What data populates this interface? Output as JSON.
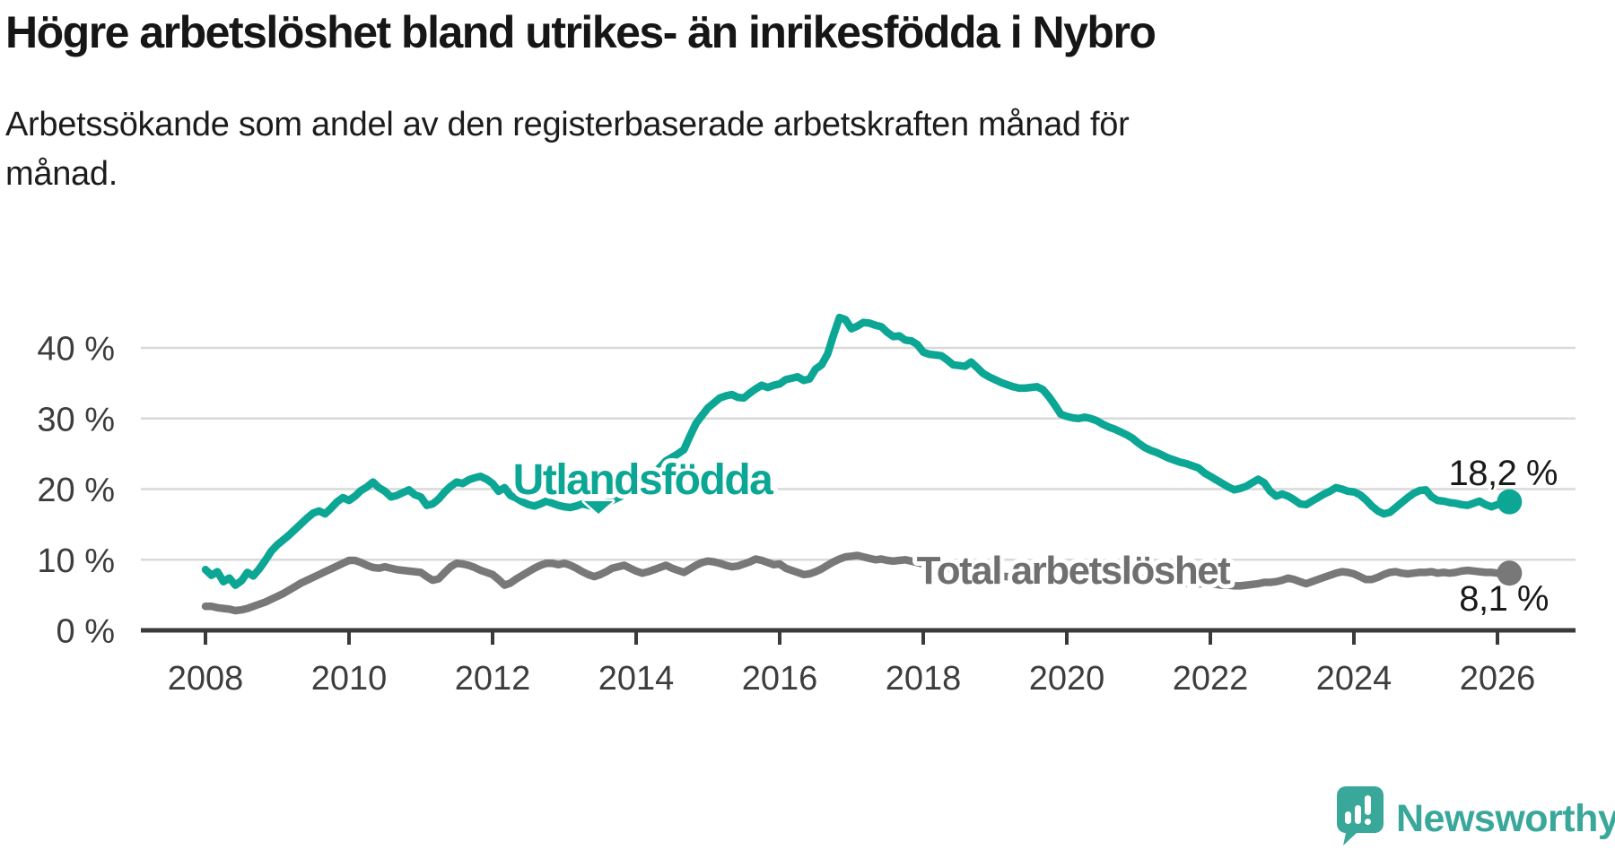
{
  "title": "Högre arbetslöshet bland utrikes- än inrikesfödda i Nybro",
  "subtitle_lines": [
    "Arbetssökande som andel av den registerbaserade arbetskraften månad för",
    "månad."
  ],
  "footer": {
    "brand": "Newsworthy"
  },
  "colors": {
    "teal_line": "#0ca695",
    "gray_line": "#787878",
    "teal_label": "#0ca695",
    "gray_label": "#6f6f6f",
    "grid": "#d9d9d9",
    "axis": "#3a3a3a",
    "tick_text": "#3d3d3d",
    "end_label_text": "#1a1a1a",
    "logo_teal": "#3aa79b"
  },
  "chart_data": {
    "type": "line",
    "title": "Högre arbetslöshet bland utrikes- än inrikesfödda i Nybro",
    "xlabel": "",
    "ylabel": "",
    "frequency": "monthly",
    "x_start": "2008-01",
    "x_end": "2026-03",
    "ylim": [
      0,
      45
    ],
    "grid": "horizontal",
    "legend_position": "inline-labels",
    "yticks": [
      {
        "value": 0,
        "label": "0 %"
      },
      {
        "value": 10,
        "label": "10 %"
      },
      {
        "value": 20,
        "label": "20 %"
      },
      {
        "value": 30,
        "label": "30 %"
      },
      {
        "value": 40,
        "label": "40 %"
      }
    ],
    "xticks": [
      {
        "value": 2008,
        "label": "2008"
      },
      {
        "value": 2010,
        "label": "2010"
      },
      {
        "value": 2012,
        "label": "2012"
      },
      {
        "value": 2014,
        "label": "2014"
      },
      {
        "value": 2016,
        "label": "2016"
      },
      {
        "value": 2018,
        "label": "2018"
      },
      {
        "value": 2020,
        "label": "2020"
      },
      {
        "value": 2022,
        "label": "2022"
      },
      {
        "value": 2024,
        "label": "2024"
      },
      {
        "value": 2026,
        "label": "2026"
      }
    ],
    "series": [
      {
        "name": "Utlandsfödda",
        "color": "#0ca695",
        "end_label": "18,2 %",
        "end_value": 18.2,
        "values": [
          8.6,
          7.8,
          8.3,
          6.9,
          7.4,
          6.4,
          7.0,
          8.2,
          7.7,
          8.7,
          9.9,
          11.2,
          12.1,
          12.8,
          13.5,
          14.3,
          15.1,
          15.9,
          16.6,
          16.9,
          16.5,
          17.3,
          18.2,
          18.8,
          18.4,
          19.0,
          19.8,
          20.3,
          21.0,
          20.2,
          19.7,
          18.9,
          19.1,
          19.5,
          19.9,
          19.2,
          18.9,
          17.7,
          17.9,
          18.6,
          19.6,
          20.4,
          21.0,
          20.8,
          21.3,
          21.6,
          21.8,
          21.4,
          20.8,
          19.7,
          20.2,
          19.1,
          18.7,
          18.2,
          17.8,
          17.6,
          17.9,
          18.3,
          18.0,
          17.7,
          17.5,
          17.4,
          17.6,
          17.9,
          17.7,
          17.5,
          17.8,
          18.1,
          18.4,
          18.8,
          19.2,
          19.6,
          20.1,
          20.7,
          21.4,
          22.2,
          23.1,
          24.0,
          24.5,
          25.0,
          25.6,
          27.5,
          29.3,
          30.4,
          31.5,
          32.2,
          32.9,
          33.2,
          33.4,
          33.0,
          32.9,
          33.6,
          34.2,
          34.7,
          34.4,
          34.7,
          34.9,
          35.5,
          35.7,
          35.9,
          35.4,
          35.6,
          37.0,
          37.6,
          39.1,
          41.8,
          44.3,
          44.0,
          42.7,
          43.1,
          43.6,
          43.5,
          43.2,
          43.0,
          42.2,
          41.6,
          41.7,
          41.1,
          41.0,
          40.5,
          39.4,
          39.1,
          39.0,
          38.9,
          38.3,
          37.6,
          37.5,
          37.4,
          38.0,
          37.2,
          36.4,
          35.9,
          35.5,
          35.1,
          34.8,
          34.5,
          34.3,
          34.3,
          34.4,
          34.5,
          34.1,
          33.1,
          31.9,
          30.6,
          30.3,
          30.1,
          30.0,
          30.2,
          30.0,
          29.7,
          29.2,
          28.8,
          28.5,
          28.1,
          27.7,
          27.2,
          26.5,
          25.9,
          25.5,
          25.2,
          24.8,
          24.4,
          24.1,
          23.8,
          23.6,
          23.3,
          23.0,
          22.3,
          21.8,
          21.3,
          20.8,
          20.3,
          19.9,
          20.1,
          20.4,
          20.9,
          21.4,
          20.9,
          19.7,
          19.0,
          19.3,
          19.0,
          18.5,
          17.9,
          17.8,
          18.3,
          18.8,
          19.3,
          19.7,
          20.2,
          20.0,
          19.7,
          19.6,
          19.2,
          18.5,
          17.6,
          16.9,
          16.5,
          16.7,
          17.4,
          18.1,
          18.8,
          19.4,
          19.8,
          19.9,
          18.9,
          18.4,
          18.3,
          18.1,
          18.0,
          17.8,
          17.7,
          18.0,
          18.3,
          17.8,
          17.5,
          17.8,
          18.0,
          18.2
        ]
      },
      {
        "name": "Total arbetslöshet",
        "color": "#787878",
        "end_label": "8,1 %",
        "end_value": 8.1,
        "values": [
          3.4,
          3.4,
          3.2,
          3.1,
          3.0,
          2.8,
          2.9,
          3.1,
          3.4,
          3.7,
          4.0,
          4.4,
          4.8,
          5.2,
          5.7,
          6.2,
          6.7,
          7.1,
          7.5,
          7.9,
          8.3,
          8.7,
          9.1,
          9.5,
          9.9,
          9.9,
          9.6,
          9.2,
          8.9,
          8.8,
          9.0,
          8.8,
          8.6,
          8.5,
          8.4,
          8.3,
          8.2,
          7.6,
          7.1,
          7.3,
          8.2,
          9.0,
          9.5,
          9.4,
          9.2,
          8.9,
          8.5,
          8.2,
          7.9,
          7.2,
          6.4,
          6.7,
          7.3,
          7.8,
          8.3,
          8.8,
          9.2,
          9.5,
          9.5,
          9.3,
          9.5,
          9.2,
          8.8,
          8.3,
          7.9,
          7.6,
          7.9,
          8.3,
          8.8,
          9.0,
          9.2,
          8.8,
          8.4,
          8.1,
          8.3,
          8.6,
          8.9,
          9.2,
          8.8,
          8.5,
          8.2,
          8.7,
          9.2,
          9.6,
          9.8,
          9.7,
          9.5,
          9.2,
          9.0,
          9.1,
          9.4,
          9.7,
          10.1,
          9.9,
          9.6,
          9.3,
          9.4,
          8.8,
          8.5,
          8.2,
          7.9,
          8.0,
          8.3,
          8.7,
          9.2,
          9.7,
          10.1,
          10.4,
          10.5,
          10.6,
          10.4,
          10.2,
          10.0,
          10.1,
          9.9,
          9.8,
          9.9,
          10.0,
          9.8,
          9.6,
          9.4,
          9.3,
          9.1,
          9.0,
          8.8,
          8.7,
          8.5,
          8.4,
          8.2,
          8.1,
          8.0,
          7.9,
          7.8,
          7.7,
          7.6,
          7.5,
          7.4,
          7.4,
          7.3,
          7.3,
          7.2,
          7.2,
          7.1,
          7.1,
          7.3,
          7.5,
          7.8,
          8.0,
          8.2,
          8.3,
          8.2,
          8.0,
          7.9,
          7.7,
          7.6,
          7.5,
          7.4,
          7.3,
          7.2,
          7.1,
          7.0,
          6.9,
          6.8,
          6.8,
          6.7,
          6.7,
          6.6,
          6.6,
          6.5,
          6.5,
          6.4,
          6.4,
          6.3,
          6.3,
          6.4,
          6.5,
          6.6,
          6.8,
          6.8,
          6.9,
          7.1,
          7.4,
          7.2,
          6.9,
          6.6,
          6.9,
          7.2,
          7.5,
          7.8,
          8.1,
          8.3,
          8.2,
          8.0,
          7.6,
          7.2,
          7.2,
          7.5,
          7.9,
          8.2,
          8.3,
          8.1,
          8.0,
          8.1,
          8.2,
          8.2,
          8.3,
          8.1,
          8.2,
          8.1,
          8.2,
          8.4,
          8.5,
          8.4,
          8.3,
          8.2,
          8.2,
          8.1,
          8.1,
          8.1
        ]
      }
    ]
  }
}
